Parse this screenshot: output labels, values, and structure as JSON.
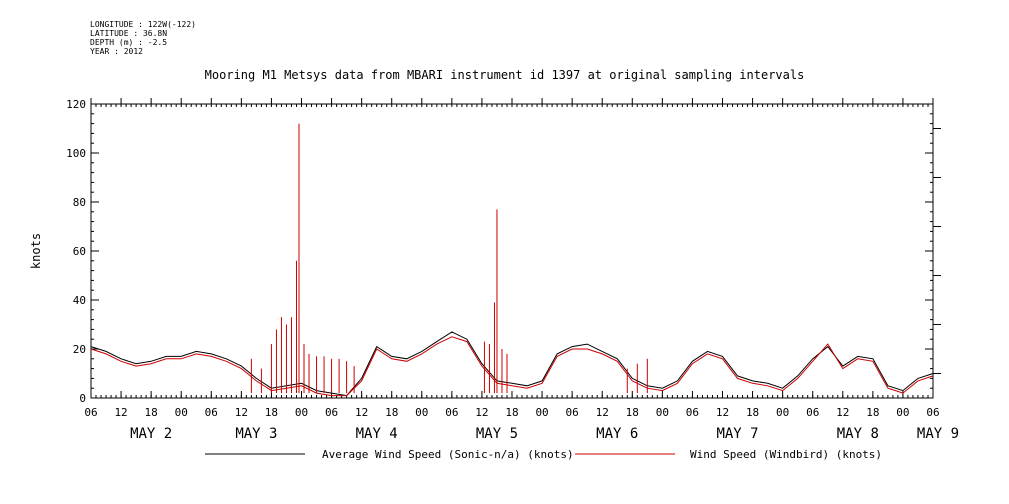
{
  "header": {
    "meta": [
      "LONGITUDE : 122W(-122)",
      "LATITUDE : 36.8N",
      "DEPTH (m) : -2.5",
      "YEAR : 2012"
    ],
    "title": "Mooring M1 Metsys data from MBARI instrument id 1397 at original sampling intervals"
  },
  "chart_data": {
    "type": "line",
    "title": "Mooring M1 Metsys data from MBARI instrument id 1397 at original sampling intervals",
    "ylabel": "knots",
    "xlabel": "",
    "ylim": [
      0,
      120
    ],
    "yticks": [
      0,
      20,
      40,
      60,
      80,
      100,
      120
    ],
    "xlim_hours_from_may2_06": [
      0,
      168
    ],
    "x_tick_labels": [
      "06",
      "12",
      "18",
      "00",
      "06",
      "12",
      "18",
      "00",
      "06",
      "12",
      "18",
      "00",
      "06",
      "12",
      "18",
      "00",
      "06",
      "12",
      "18",
      "00",
      "06",
      "12",
      "18",
      "00",
      "06",
      "12",
      "18",
      "00",
      "06"
    ],
    "x_tick_hours": [
      0,
      6,
      12,
      18,
      24,
      30,
      36,
      42,
      48,
      54,
      60,
      66,
      72,
      78,
      84,
      90,
      96,
      102,
      108,
      114,
      120,
      126,
      132,
      138,
      144,
      150,
      156,
      162,
      168
    ],
    "day_labels": [
      {
        "label": "MAY  2",
        "hour": 12
      },
      {
        "label": "MAY  3",
        "hour": 33
      },
      {
        "label": "MAY  4",
        "hour": 57
      },
      {
        "label": "MAY  5",
        "hour": 81
      },
      {
        "label": "MAY  6",
        "hour": 105
      },
      {
        "label": "MAY  7",
        "hour": 129
      },
      {
        "label": "MAY  8",
        "hour": 153
      },
      {
        "label": "MAY  9",
        "hour": 169
      }
    ],
    "series": [
      {
        "name": "Average Wind Speed (Sonic-n/a) (knots)",
        "color": "#000000",
        "hours": [
          0,
          3,
          6,
          9,
          12,
          15,
          18,
          21,
          24,
          27,
          30,
          33,
          36,
          39,
          42,
          45,
          48,
          51,
          54,
          57,
          60,
          63,
          66,
          69,
          72,
          75,
          78,
          81,
          84,
          87,
          90,
          93,
          96,
          99,
          102,
          105,
          108,
          111,
          114,
          117,
          120,
          123,
          126,
          129,
          132,
          135,
          138,
          141,
          144,
          147,
          150,
          153,
          156,
          159,
          162,
          165,
          168
        ],
        "values": [
          21,
          19,
          16,
          14,
          15,
          17,
          17,
          19,
          18,
          16,
          13,
          8,
          4,
          5,
          6,
          3,
          2,
          1,
          8,
          21,
          17,
          16,
          19,
          23,
          27,
          24,
          14,
          7,
          6,
          5,
          7,
          18,
          21,
          22,
          19,
          16,
          8,
          5,
          4,
          7,
          15,
          19,
          17,
          9,
          7,
          6,
          4,
          9,
          16,
          21,
          13,
          17,
          16,
          5,
          3,
          8,
          10
        ]
      },
      {
        "name": "Wind Speed (Windbird) (knots)",
        "color": "#cc0000",
        "hours": [
          0,
          3,
          6,
          9,
          12,
          15,
          18,
          21,
          24,
          27,
          30,
          33,
          36,
          39,
          42,
          45,
          48,
          51,
          54,
          57,
          60,
          63,
          66,
          69,
          72,
          75,
          78,
          81,
          84,
          87,
          90,
          93,
          96,
          99,
          102,
          105,
          108,
          111,
          114,
          117,
          120,
          123,
          126,
          129,
          132,
          135,
          138,
          141,
          144,
          147,
          150,
          153,
          156,
          159,
          162,
          165,
          168
        ],
        "values": [
          20,
          18,
          15,
          13,
          14,
          16,
          16,
          18,
          17,
          15,
          12,
          7,
          3,
          4,
          5,
          2,
          1,
          1,
          7,
          20,
          16,
          15,
          18,
          22,
          25,
          23,
          13,
          6,
          5,
          4,
          6,
          17,
          20,
          20,
          18,
          15,
          7,
          4,
          3,
          6,
          14,
          18,
          16,
          8,
          6,
          5,
          3,
          8,
          15,
          22,
          12,
          16,
          15,
          4,
          2,
          7,
          9
        ],
        "spikes": [
          {
            "hour": 32,
            "value": 16
          },
          {
            "hour": 34,
            "value": 12
          },
          {
            "hour": 36,
            "value": 22
          },
          {
            "hour": 37,
            "value": 28
          },
          {
            "hour": 38,
            "value": 33
          },
          {
            "hour": 39,
            "value": 30
          },
          {
            "hour": 40,
            "value": 33
          },
          {
            "hour": 41,
            "value": 56
          },
          {
            "hour": 41.5,
            "value": 112
          },
          {
            "hour": 42.5,
            "value": 22
          },
          {
            "hour": 43.5,
            "value": 18
          },
          {
            "hour": 45,
            "value": 17
          },
          {
            "hour": 46.5,
            "value": 17
          },
          {
            "hour": 48,
            "value": 16
          },
          {
            "hour": 49.5,
            "value": 16
          },
          {
            "hour": 51,
            "value": 15
          },
          {
            "hour": 52.5,
            "value": 13
          },
          {
            "hour": 78.5,
            "value": 23
          },
          {
            "hour": 79.5,
            "value": 22
          },
          {
            "hour": 80.5,
            "value": 39
          },
          {
            "hour": 81,
            "value": 77
          },
          {
            "hour": 82,
            "value": 20
          },
          {
            "hour": 83,
            "value": 18
          },
          {
            "hour": 107,
            "value": 12
          },
          {
            "hour": 109,
            "value": 14
          },
          {
            "hour": 111,
            "value": 16
          }
        ]
      }
    ],
    "legend": [
      {
        "label": "Average Wind Speed (Sonic-n/a) (knots)",
        "color": "#000000"
      },
      {
        "label": "Wind Speed (Windbird) (knots)",
        "color": "#cc0000"
      }
    ]
  }
}
